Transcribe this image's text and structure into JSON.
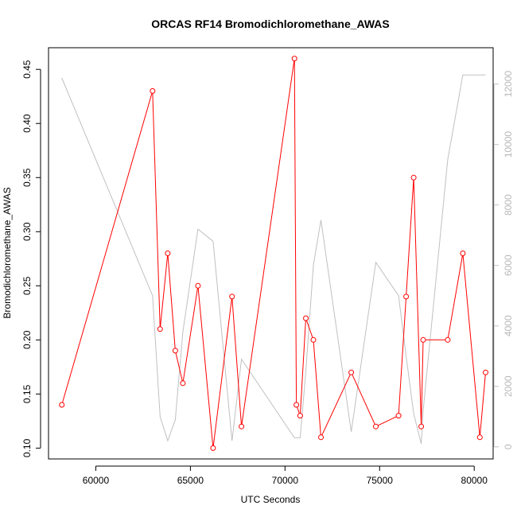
{
  "chart_data": {
    "type": "line",
    "title": "ORCAS RF14 Bromodichloromethane_AWAS",
    "xlabel": "UTC Seconds",
    "ylabel": "Bromodichloromethane_AWAS",
    "xlim": [
      57500,
      81000
    ],
    "ylim": [
      0.09,
      0.47
    ],
    "y2lim": [
      -400,
      13200
    ],
    "x_ticks": [
      60000,
      65000,
      70000,
      75000,
      80000
    ],
    "x_tick_labels": [
      "60000",
      "65000",
      "70000",
      "75000",
      "80000"
    ],
    "y_ticks": [
      0.1,
      0.15,
      0.2,
      0.25,
      0.3,
      0.35,
      0.4,
      0.45
    ],
    "y_tick_labels": [
      "0.10",
      "0.15",
      "0.20",
      "0.25",
      "0.30",
      "0.35",
      "0.40",
      "0.45"
    ],
    "y2_ticks": [
      0,
      2000,
      4000,
      6000,
      8000,
      10000,
      12000
    ],
    "y2_tick_labels": [
      "0",
      "2000",
      "4000",
      "6000",
      "8000",
      "10000",
      "12000"
    ],
    "series": [
      {
        "axis": "left",
        "color": "#ff0000",
        "marker": "open-circle",
        "x": [
          58200,
          63000,
          63400,
          63800,
          64200,
          64600,
          65400,
          66200,
          67200,
          67700,
          70500,
          70600,
          70800,
          71100,
          71500,
          71900,
          73500,
          74800,
          76000,
          76400,
          76800,
          77200,
          77300,
          78600,
          79400,
          80300,
          80600
        ],
        "y": [
          0.14,
          0.43,
          0.21,
          0.28,
          0.19,
          0.16,
          0.25,
          0.1,
          0.24,
          0.12,
          0.46,
          0.14,
          0.13,
          0.22,
          0.2,
          0.11,
          0.17,
          0.12,
          0.13,
          0.24,
          0.35,
          0.12,
          0.2,
          0.2,
          0.28,
          0.11,
          0.17
        ]
      },
      {
        "axis": "right",
        "color": "#c0c0c0",
        "marker": "none",
        "x": [
          58200,
          63000,
          63400,
          63800,
          64200,
          64600,
          65400,
          66200,
          67200,
          67700,
          70500,
          70600,
          70800,
          71100,
          71500,
          71900,
          73500,
          74800,
          76000,
          76400,
          76800,
          77200,
          77300,
          78600,
          79400,
          80300,
          80600
        ],
        "y": [
          12200,
          5000,
          1000,
          200,
          900,
          3800,
          7200,
          6800,
          200,
          2900,
          300,
          300,
          300,
          2500,
          6000,
          7500,
          500,
          6100,
          5000,
          3000,
          1100,
          100,
          1200,
          9500,
          12300,
          12300,
          12300
        ]
      }
    ],
    "grid": false,
    "legend": "none"
  }
}
